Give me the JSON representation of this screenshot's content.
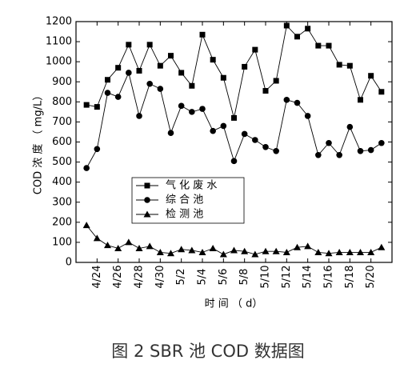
{
  "chart_data": {
    "type": "line",
    "caption": "图 2 SBR 池 COD 数据图",
    "x_label": "时 间 （ d）",
    "y_label": "COD 浓 度 （ mg/L）",
    "x": [
      23,
      24,
      25,
      26,
      27,
      28,
      29,
      30,
      31,
      32,
      33,
      34,
      35,
      36,
      37,
      38,
      39,
      40,
      41,
      42,
      43,
      44,
      45,
      46,
      47,
      48,
      49,
      50,
      51
    ],
    "xlim": [
      22,
      52
    ],
    "xticks": [
      {
        "value": 24,
        "label": "4/24"
      },
      {
        "value": 26,
        "label": "4/26"
      },
      {
        "value": 28,
        "label": "4/28"
      },
      {
        "value": 30,
        "label": "4/30"
      },
      {
        "value": 32,
        "label": "5/2"
      },
      {
        "value": 34,
        "label": "5/4"
      },
      {
        "value": 36,
        "label": "5/6"
      },
      {
        "value": 38,
        "label": "5/8"
      },
      {
        "value": 40,
        "label": "5/10"
      },
      {
        "value": 42,
        "label": "5/12"
      },
      {
        "value": 44,
        "label": "5/14"
      },
      {
        "value": 46,
        "label": "5/16"
      },
      {
        "value": 48,
        "label": "5/18"
      },
      {
        "value": 50,
        "label": "5/20"
      }
    ],
    "ylim": [
      0,
      1200
    ],
    "yticks": [
      0,
      100,
      200,
      300,
      400,
      500,
      600,
      700,
      800,
      900,
      1000,
      1100,
      1200
    ],
    "legend": "lower left",
    "series": [
      {
        "name": "气 化 废 水",
        "color": "#000000",
        "marker": "square",
        "values": [
          785,
          775,
          910,
          970,
          1085,
          955,
          1085,
          980,
          1030,
          945,
          880,
          1135,
          1010,
          920,
          720,
          975,
          1060,
          855,
          905,
          1180,
          1125,
          1165,
          1080,
          1080,
          985,
          980,
          810,
          930,
          850
        ]
      },
      {
        "name": "综 合 池",
        "color": "#000000",
        "marker": "circle",
        "values": [
          470,
          565,
          845,
          825,
          945,
          730,
          890,
          865,
          645,
          780,
          750,
          765,
          655,
          680,
          505,
          640,
          610,
          575,
          555,
          810,
          795,
          730,
          535,
          595,
          535,
          675,
          555,
          560,
          595
        ]
      },
      {
        "name": "检 测 池",
        "color": "#000000",
        "marker": "triangle",
        "values": [
          185,
          120,
          85,
          70,
          100,
          70,
          80,
          50,
          45,
          65,
          60,
          50,
          70,
          40,
          60,
          55,
          40,
          55,
          55,
          50,
          75,
          80,
          50,
          45,
          50,
          50,
          50,
          50,
          75
        ]
      }
    ]
  }
}
